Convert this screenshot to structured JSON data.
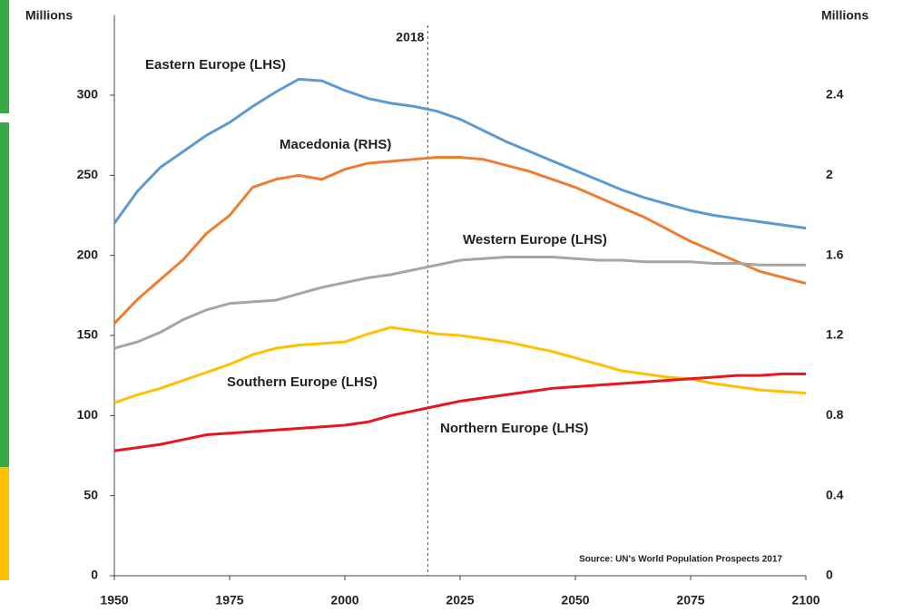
{
  "chart_data": {
    "type": "line",
    "y_label": "Millions",
    "y2_label": "Millions",
    "source": "Source: UN's World Population Prospects 2017",
    "vline": {
      "value": 2018,
      "label": "2018"
    },
    "x": [
      1950,
      1955,
      1960,
      1965,
      1970,
      1975,
      1980,
      1985,
      1990,
      1995,
      2000,
      2005,
      2010,
      2015,
      2020,
      2025,
      2030,
      2035,
      2040,
      2045,
      2050,
      2055,
      2060,
      2065,
      2070,
      2075,
      2080,
      2085,
      2090,
      2095,
      2100
    ],
    "xlim": [
      1950,
      2100
    ],
    "xticks": [
      1950,
      1975,
      2000,
      2025,
      2050,
      2075,
      2100
    ],
    "ylim": [
      0,
      350
    ],
    "yticks": [
      0,
      50,
      100,
      150,
      200,
      250,
      300
    ],
    "y2lim": [
      0,
      2.8
    ],
    "y2ticks": [
      0,
      0.4,
      0.8,
      1.2,
      1.6,
      2,
      2.4
    ],
    "series": [
      {
        "name": "Eastern Europe (LHS)",
        "color": "#5b9bd5",
        "values": [
          220,
          240,
          255,
          265,
          275,
          283,
          293,
          302,
          310,
          309,
          303,
          298,
          295,
          293,
          290,
          285,
          278,
          271,
          265,
          259,
          253,
          247,
          241,
          236,
          232,
          228,
          225,
          223,
          221,
          219,
          217
        ]
      },
      {
        "name": "Macedonia (RHS)",
        "color": "#ed7d31",
        "axis": "y2",
        "values": [
          1.26,
          1.38,
          1.48,
          1.58,
          1.71,
          1.8,
          1.94,
          1.98,
          2.0,
          1.98,
          2.03,
          2.06,
          2.07,
          2.08,
          2.09,
          2.09,
          2.08,
          2.05,
          2.02,
          1.98,
          1.94,
          1.89,
          1.84,
          1.79,
          1.73,
          1.67,
          1.62,
          1.57,
          1.52,
          1.49,
          1.46
        ]
      },
      {
        "name": "Western Europe (LHS)",
        "color": "#a5a5a5",
        "values": [
          142,
          146,
          152,
          160,
          166,
          170,
          171,
          172,
          176,
          180,
          183,
          186,
          188,
          191,
          194,
          197,
          198,
          199,
          199,
          199,
          198,
          197,
          197,
          196,
          196,
          196,
          195,
          195,
          194,
          194,
          194
        ]
      },
      {
        "name": "Southern Europe (LHS)",
        "color": "#ffc000",
        "values": [
          108,
          113,
          117,
          122,
          127,
          132,
          138,
          142,
          144,
          145,
          146,
          151,
          155,
          153,
          151,
          150,
          148,
          146,
          143,
          140,
          136,
          132,
          128,
          126,
          124,
          123,
          120,
          118,
          116,
          115,
          114
        ]
      },
      {
        "name": "Northern Europe (LHS)",
        "color": "#e8141e",
        "values": [
          78,
          80,
          82,
          85,
          88,
          89,
          90,
          91,
          92,
          93,
          94,
          96,
          100,
          103,
          106,
          109,
          111,
          113,
          115,
          117,
          118,
          119,
          120,
          121,
          122,
          123,
          124,
          125,
          125,
          126,
          126
        ]
      }
    ]
  }
}
